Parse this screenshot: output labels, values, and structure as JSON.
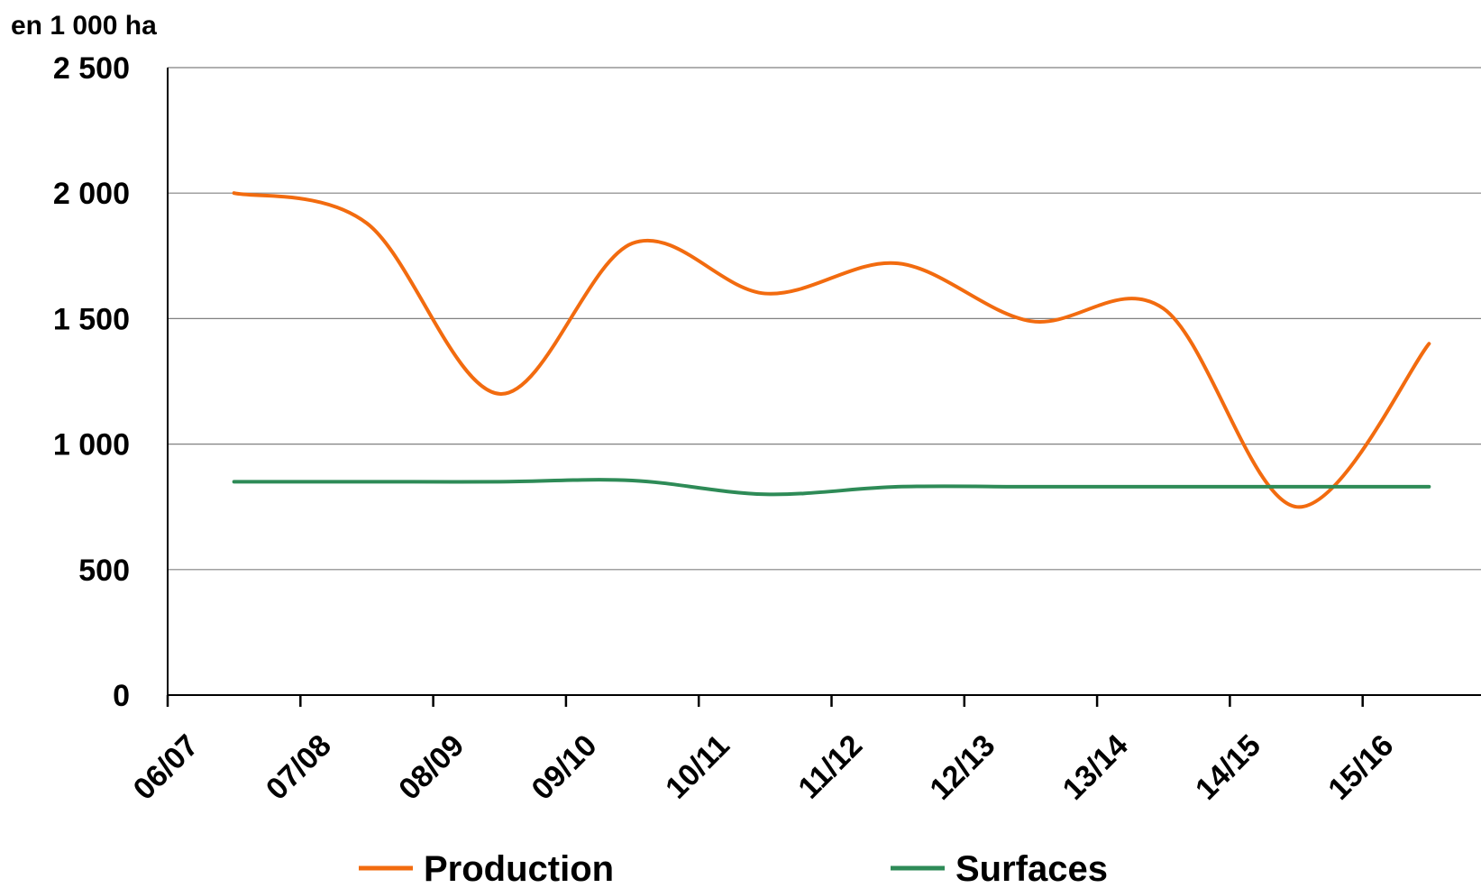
{
  "chart_data": {
    "type": "line",
    "y_unit_label": "en 1 000 ha",
    "categories": [
      "06/07",
      "07/08",
      "08/09",
      "09/10",
      "10/11",
      "11/12",
      "12/13",
      "13/14",
      "14/15",
      "15/16"
    ],
    "y_ticks": [
      {
        "value": 0,
        "label": "0"
      },
      {
        "value": 500,
        "label": "500"
      },
      {
        "value": 1000,
        "label": "1 000"
      },
      {
        "value": 1500,
        "label": "1 500"
      },
      {
        "value": 2000,
        "label": "2 000"
      },
      {
        "value": 2500,
        "label": "2 500"
      }
    ],
    "ylim": [
      0,
      2500
    ],
    "grid": true,
    "legend_position": "bottom",
    "series": [
      {
        "name": "Production",
        "color": "#F26B0F",
        "x": [
          0.5,
          1.5,
          2.5,
          3.5,
          4.5,
          5.5,
          6.5,
          7.5,
          8.5,
          9.5
        ],
        "values": [
          2000,
          1880,
          1200,
          1800,
          1600,
          1720,
          1490,
          1540,
          750,
          1400
        ]
      },
      {
        "name": "Surfaces",
        "color": "#2E8B57",
        "x": [
          0.5,
          1.5,
          2.5,
          3.5,
          4.5,
          5.5,
          6.5,
          7.5,
          8.5,
          9.5
        ],
        "values": [
          850,
          850,
          850,
          855,
          800,
          830,
          830,
          830,
          830,
          830
        ]
      }
    ]
  }
}
